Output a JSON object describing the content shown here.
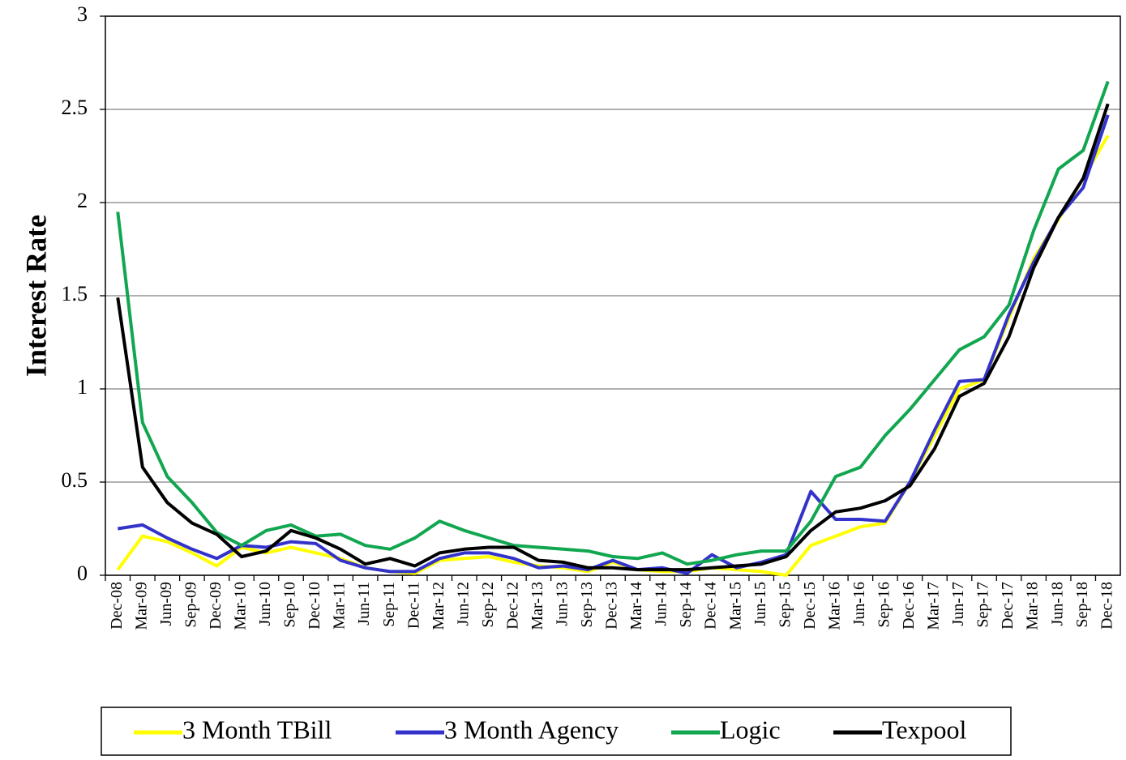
{
  "chart_data": {
    "type": "line",
    "y_label": "Interest Rate",
    "categories": [
      "Dec-08",
      "Mar-09",
      "Jun-09",
      "Sep-09",
      "Dec-09",
      "Mar-10",
      "Jun-10",
      "Sep-10",
      "Dec-10",
      "Mar-11",
      "Jun-11",
      "Sep-11",
      "Dec-11",
      "Mar-12",
      "Jun-12",
      "Sep-12",
      "Dec-12",
      "Mar-13",
      "Jun-13",
      "Sep-13",
      "Dec-13",
      "Mar-14",
      "Jun-14",
      "Sep-14",
      "Dec-14",
      "Mar-15",
      "Jun-15",
      "Sep-15",
      "Dec-15",
      "Mar-16",
      "Jun-16",
      "Sep-16",
      "Dec-16",
      "Mar-17",
      "Jun-17",
      "Sep-17",
      "Dec-17",
      "Mar-18",
      "Jun-18",
      "Sep-18",
      "Dec-18"
    ],
    "series": [
      {
        "name": "3 Month TBill",
        "color": "#ffff00",
        "values": [
          0.03,
          0.21,
          0.18,
          0.12,
          0.05,
          0.15,
          0.12,
          0.15,
          0.12,
          0.09,
          0.04,
          0.02,
          0.01,
          0.08,
          0.09,
          0.1,
          0.07,
          0.05,
          0.04,
          0.02,
          0.07,
          0.03,
          0.02,
          0.02,
          0.04,
          0.03,
          0.02,
          0.0,
          0.16,
          0.21,
          0.26,
          0.28,
          0.5,
          0.75,
          1.0,
          1.05,
          1.38,
          1.7,
          1.91,
          2.13,
          2.36
        ]
      },
      {
        "name": "3 Month Agency",
        "color": "#3333cc",
        "values": [
          0.25,
          0.27,
          0.2,
          0.14,
          0.09,
          0.16,
          0.15,
          0.18,
          0.17,
          0.08,
          0.04,
          0.02,
          0.02,
          0.09,
          0.12,
          0.12,
          0.09,
          0.04,
          0.05,
          0.03,
          0.08,
          0.03,
          0.04,
          0.01,
          0.11,
          0.04,
          0.07,
          0.11,
          0.45,
          0.3,
          0.3,
          0.29,
          0.5,
          0.78,
          1.04,
          1.05,
          1.4,
          1.68,
          1.92,
          2.08,
          2.47
        ]
      },
      {
        "name": "Logic",
        "color": "#11a650",
        "values": [
          1.95,
          0.82,
          0.53,
          0.39,
          0.23,
          0.16,
          0.24,
          0.27,
          0.21,
          0.22,
          0.16,
          0.14,
          0.2,
          0.29,
          0.24,
          0.2,
          0.16,
          0.15,
          0.14,
          0.13,
          0.1,
          0.09,
          0.12,
          0.06,
          0.08,
          0.11,
          0.13,
          0.13,
          0.29,
          0.53,
          0.58,
          0.75,
          0.89,
          1.05,
          1.21,
          1.28,
          1.45,
          1.85,
          2.18,
          2.28,
          2.65
        ]
      },
      {
        "name": "Texpool",
        "color": "#000000",
        "values": [
          1.49,
          0.58,
          0.39,
          0.28,
          0.22,
          0.1,
          0.13,
          0.24,
          0.2,
          0.14,
          0.06,
          0.09,
          0.05,
          0.12,
          0.14,
          0.15,
          0.15,
          0.08,
          0.07,
          0.04,
          0.04,
          0.03,
          0.03,
          0.03,
          0.04,
          0.05,
          0.06,
          0.1,
          0.24,
          0.34,
          0.36,
          0.4,
          0.48,
          0.68,
          0.96,
          1.03,
          1.28,
          1.65,
          1.92,
          2.13,
          2.53
        ]
      }
    ],
    "ylim": [
      0,
      3
    ],
    "yticks": [
      0,
      0.5,
      1,
      1.5,
      2,
      2.5,
      3
    ],
    "grid": true,
    "legend": "bottom"
  }
}
